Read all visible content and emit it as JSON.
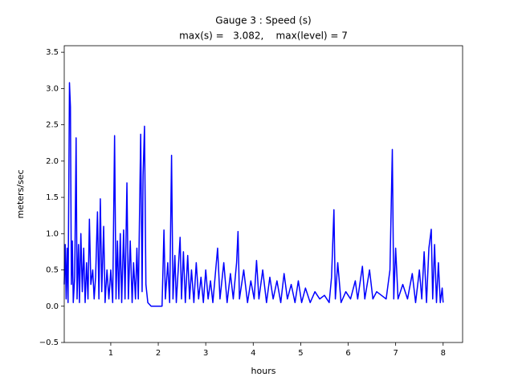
{
  "chart_data": {
    "type": "line",
    "title": "Gauge 3 : Speed (s)",
    "subtitle": "max(s) =   3.082,    max(level) = 7",
    "x_label": "hours",
    "y_label": "meters/sec",
    "xlim": [
      0.02,
      8.41
    ],
    "ylim": [
      -0.5,
      3.59
    ],
    "xticks": [
      1,
      2,
      3,
      4,
      5,
      6,
      7,
      8
    ],
    "yticks": [
      {
        "value": -0.5,
        "label": "−0.5"
      },
      {
        "value": 0,
        "label": "0.0"
      },
      0.5,
      {
        "value": 1,
        "label": "1.0"
      },
      1.5,
      {
        "value": 2,
        "label": "2.0"
      },
      2.5,
      {
        "value": 3,
        "label": "3.0"
      },
      3.5
    ],
    "series": [
      {
        "color": "#0000ff",
        "x": [
          0.02,
          0.04,
          0.06,
          0.08,
          0.1,
          0.13,
          0.15,
          0.17,
          0.19,
          0.21,
          0.24,
          0.27,
          0.29,
          0.32,
          0.34,
          0.37,
          0.4,
          0.43,
          0.46,
          0.49,
          0.52,
          0.55,
          0.58,
          0.62,
          0.65,
          0.68,
          0.72,
          0.75,
          0.78,
          0.81,
          0.85,
          0.88,
          0.92,
          0.96,
          1.0,
          1.04,
          1.08,
          1.11,
          1.14,
          1.17,
          1.2,
          1.23,
          1.27,
          1.3,
          1.34,
          1.37,
          1.41,
          1.45,
          1.48,
          1.52,
          1.55,
          1.58,
          1.63,
          1.66,
          1.68,
          1.71,
          1.74,
          1.78,
          1.85,
          2.05,
          2.08,
          2.12,
          2.15,
          2.2,
          2.24,
          2.28,
          2.31,
          2.35,
          2.38,
          2.42,
          2.46,
          2.49,
          2.53,
          2.57,
          2.62,
          2.66,
          2.7,
          2.75,
          2.8,
          2.85,
          2.9,
          2.95,
          3.0,
          3.05,
          3.1,
          3.15,
          3.25,
          3.3,
          3.38,
          3.45,
          3.52,
          3.58,
          3.65,
          3.68,
          3.71,
          3.8,
          3.88,
          3.95,
          4.02,
          4.07,
          4.12,
          4.2,
          4.28,
          4.35,
          4.42,
          4.5,
          4.58,
          4.65,
          4.72,
          4.8,
          4.88,
          4.95,
          5.02,
          5.1,
          5.2,
          5.3,
          5.4,
          5.5,
          5.6,
          5.65,
          5.7,
          5.73,
          5.78,
          5.85,
          5.95,
          6.05,
          6.15,
          6.2,
          6.3,
          6.35,
          6.45,
          6.52,
          6.6,
          6.7,
          6.8,
          6.88,
          6.93,
          6.96,
          7.0,
          7.05,
          7.15,
          7.25,
          7.35,
          7.42,
          7.5,
          7.55,
          7.6,
          7.65,
          7.7,
          7.75,
          7.78,
          7.82,
          7.86,
          7.9,
          7.94,
          7.98,
          8.0
        ],
        "values": [
          0.3,
          0.85,
          0.1,
          0.8,
          0.05,
          3.08,
          2.75,
          0.3,
          0.9,
          0.05,
          0.4,
          2.32,
          0.1,
          0.85,
          0.05,
          1.0,
          0.2,
          0.8,
          0.05,
          0.6,
          0.1,
          1.2,
          0.3,
          0.5,
          0.1,
          0.4,
          1.3,
          0.1,
          1.48,
          0.2,
          1.1,
          0.05,
          0.5,
          0.1,
          0.5,
          0.05,
          2.35,
          0.1,
          0.9,
          0.1,
          1.0,
          0.05,
          1.05,
          0.1,
          1.7,
          0.1,
          0.9,
          0.05,
          0.6,
          0.1,
          0.8,
          0.1,
          2.37,
          0.2,
          1.8,
          2.48,
          0.3,
          0.05,
          0,
          0,
          0,
          1.05,
          0.1,
          0.6,
          0.05,
          2.08,
          0.1,
          0.7,
          0.05,
          0.5,
          0.95,
          0.1,
          0.75,
          0.05,
          0.7,
          0.1,
          0.5,
          0.05,
          0.6,
          0.1,
          0.4,
          0.05,
          0.5,
          0.1,
          0.35,
          0.05,
          0.8,
          0.1,
          0.6,
          0.05,
          0.45,
          0.1,
          0.6,
          1.03,
          0.1,
          0.5,
          0.05,
          0.35,
          0.1,
          0.63,
          0.1,
          0.5,
          0.05,
          0.4,
          0.1,
          0.35,
          0.05,
          0.45,
          0.1,
          0.3,
          0.05,
          0.35,
          0.05,
          0.25,
          0.05,
          0.2,
          0.1,
          0.15,
          0.05,
          0.4,
          1.33,
          0.1,
          0.6,
          0.05,
          0.2,
          0.1,
          0.35,
          0.1,
          0.55,
          0.1,
          0.5,
          0.1,
          0.2,
          0.15,
          0.1,
          0.5,
          2.16,
          0.1,
          0.8,
          0.1,
          0.3,
          0.1,
          0.45,
          0.05,
          0.5,
          0.1,
          0.75,
          0.05,
          0.8,
          1.06,
          0.1,
          0.85,
          0.05,
          0.6,
          0.05,
          0.25,
          0.05
        ]
      }
    ]
  }
}
